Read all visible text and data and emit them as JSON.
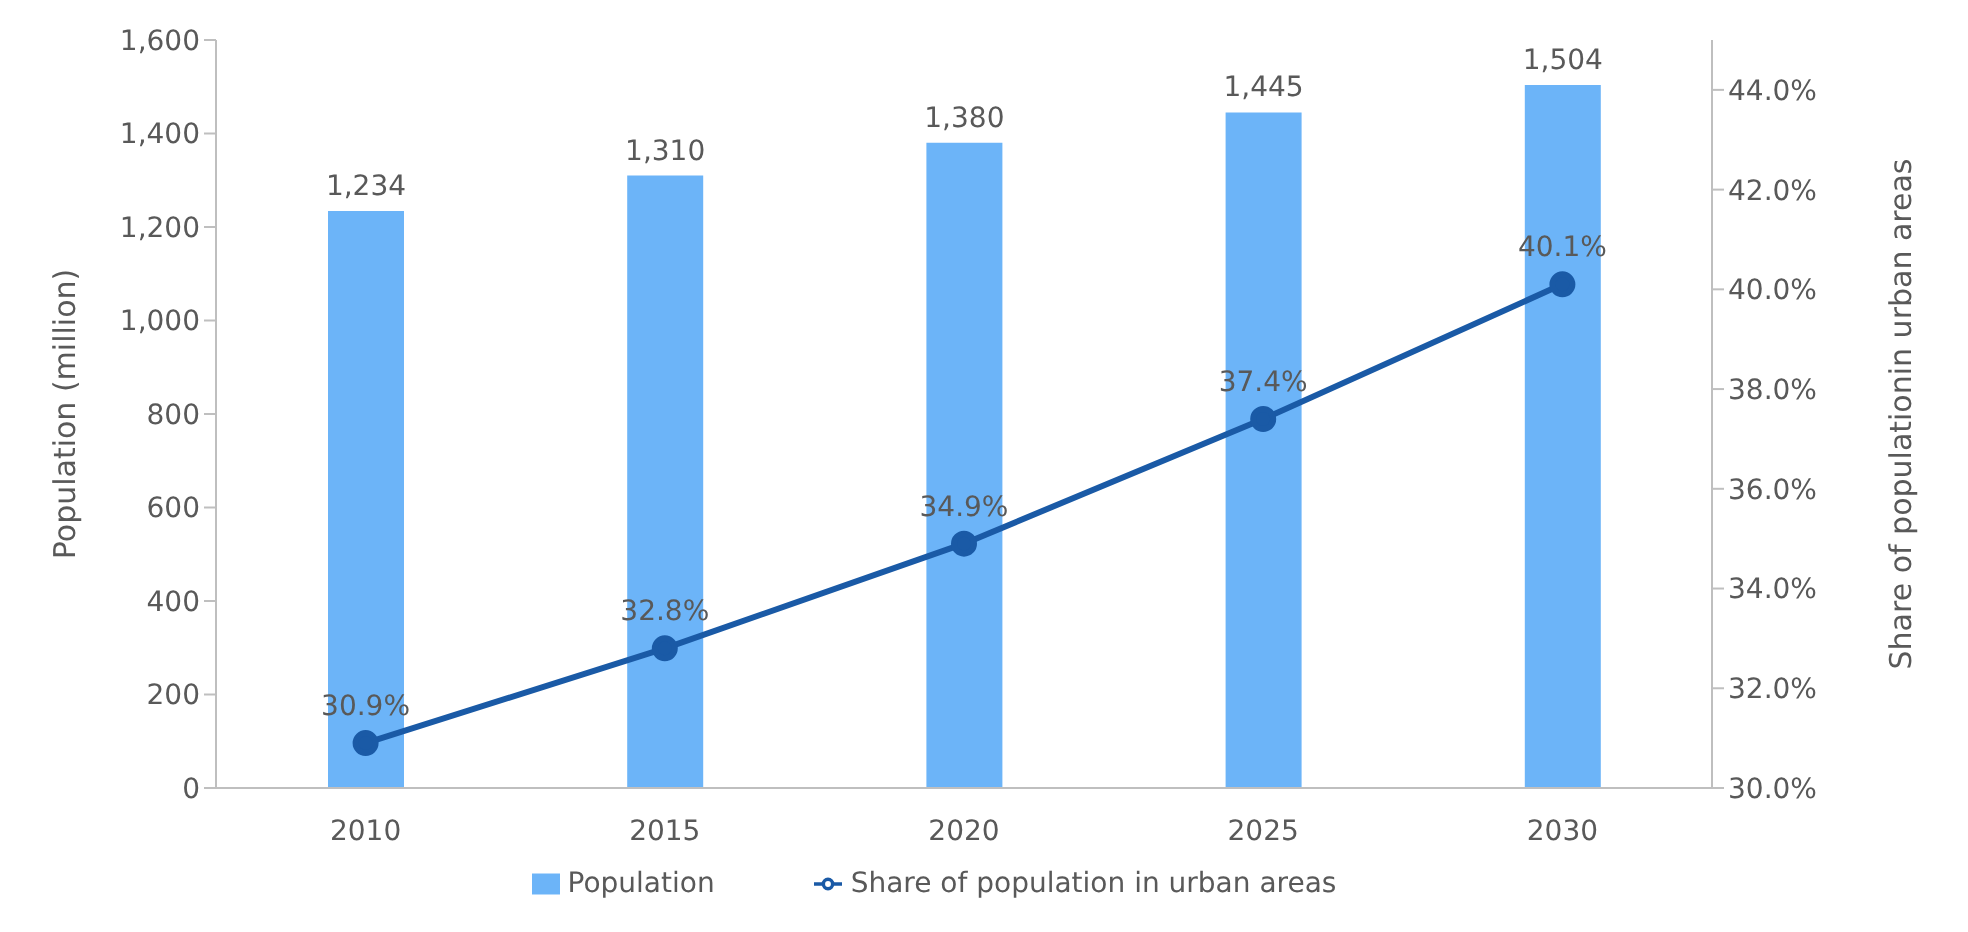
{
  "chart_data": {
    "type": "bar",
    "categories": [
      "2010",
      "2015",
      "2020",
      "2025",
      "2030"
    ],
    "ylabel": "Population (million)",
    "y2label": "Share of populationin urban areas",
    "series": [
      {
        "name": "Population",
        "color": "#6cb4f8",
        "values": [
          1234,
          1310,
          1380,
          1445,
          1504
        ],
        "value_labels": [
          "1,234",
          "1,310",
          "1,380",
          "1,445",
          "1,504"
        ]
      },
      {
        "name": "Share of population in urban areas",
        "type": "line",
        "axis": "y2",
        "color": "#1a5aa6",
        "marker": "circle",
        "values": [
          30.9,
          32.8,
          34.9,
          37.4,
          40.1
        ],
        "value_labels": [
          "30.9%",
          "32.8%",
          "34.9%",
          "37.4%",
          "40.1%"
        ]
      }
    ],
    "ylim": [
      0,
      1600
    ],
    "yticks": [
      0,
      200,
      400,
      600,
      800,
      {
        "value": 1000,
        "label": "1,000"
      },
      {
        "value": 1200,
        "label": "1,200"
      },
      {
        "value": 1400,
        "label": "1,400"
      },
      {
        "value": 1600,
        "label": "1,600"
      }
    ],
    "y2lim": [
      30,
      45
    ],
    "y2ticks": [
      {
        "value": 30,
        "label": "30.0%"
      },
      {
        "value": 32,
        "label": "32.0%"
      },
      {
        "value": 34,
        "label": "34.0%"
      },
      {
        "value": 36,
        "label": "36.0%"
      },
      {
        "value": 38,
        "label": "38.0%"
      },
      {
        "value": 40,
        "label": "40.0%"
      },
      {
        "value": 42,
        "label": "42.0%"
      },
      {
        "value": 44,
        "label": "44.0%"
      }
    ],
    "grid": false,
    "legend": "bottom"
  }
}
